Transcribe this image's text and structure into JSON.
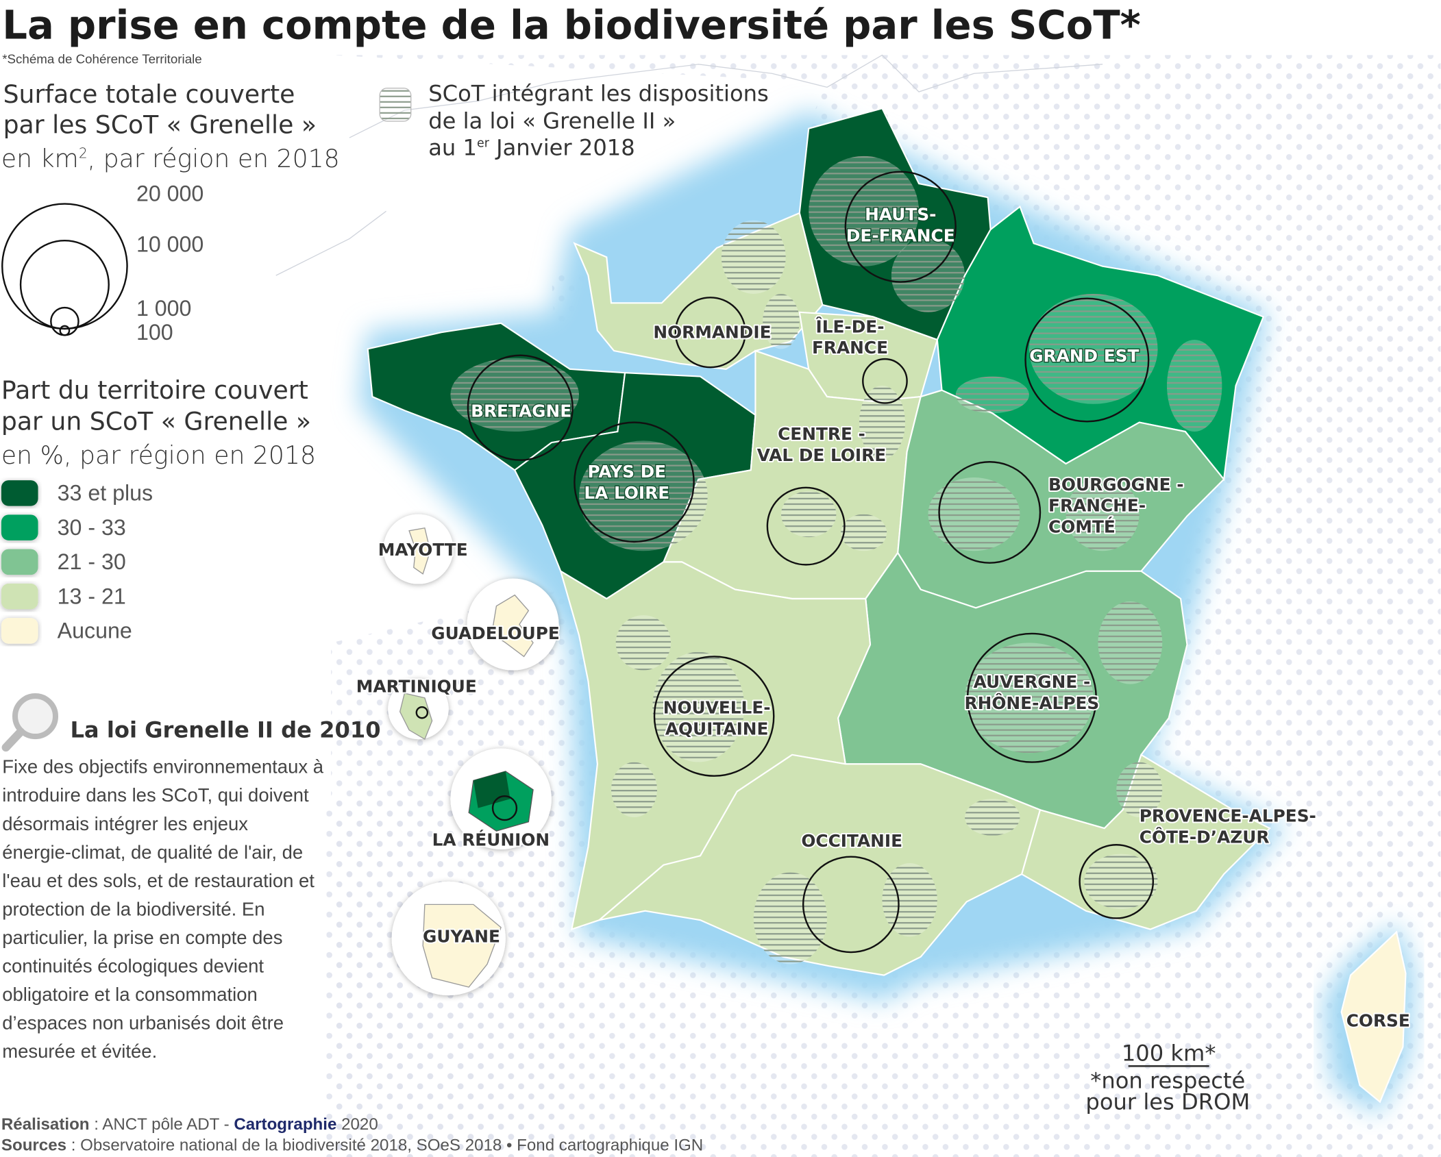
{
  "title": "La prise en compte de la biodiversité par les SCoT*",
  "footnote": "*Schéma de Cohérence Territoriale",
  "legend_size": {
    "title_lines": [
      "Surface totale couverte",
      "par les SCoT « Grenelle »"
    ],
    "subtitle_pre": "en km",
    "subtitle_sup": "2",
    "subtitle_post": ", par région en 2018",
    "values": [
      "20 000",
      "10 000",
      "1 000",
      "100"
    ]
  },
  "legend_hatch": {
    "lines": [
      "SCoT intégrant les dispositions",
      "de la loi « Grenelle II »"
    ],
    "line3_pre": "au 1",
    "line3_sup": "er",
    "line3_post": " Janvier 2018"
  },
  "legend_share": {
    "title_lines": [
      "Part du territoire couvert",
      "par un SCoT « Grenelle »"
    ],
    "subtitle": "en %, par région en 2018",
    "classes": [
      {
        "label": "33 et plus",
        "color": "#005c30"
      },
      {
        "label": "30 - 33",
        "color": "#00a05e"
      },
      {
        "label": "21 - 30",
        "color": "#80c493"
      },
      {
        "label": "13 - 21",
        "color": "#cfe3b4"
      },
      {
        "label": "Aucune",
        "color": "#fdf6d8"
      }
    ]
  },
  "box": {
    "title": "La loi Grenelle II de 2010",
    "lines": [
      "Fixe des objectifs environnementaux à",
      "introduire dans les SCoT, qui doivent",
      "désormais intégrer les enjeux",
      "énergie-climat, de qualité de l'air, de",
      "l'eau et des sols, et de restauration et",
      "protection de la biodiversité. En",
      "particulier, la prise en compte des",
      "continuités écologiques devient",
      "obligatoire et la consommation",
      "d’espaces non urbanisés doit être",
      "mesurée et évitée."
    ]
  },
  "regions": {
    "hdf": [
      "HAUTS-",
      "DE-FRANCE"
    ],
    "normandie": [
      "NORMANDIE"
    ],
    "idf": [
      "ÎLE-DE-",
      "FRANCE"
    ],
    "grand_est": [
      "GRAND EST"
    ],
    "bretagne": [
      "BRETAGNE"
    ],
    "pdl": [
      "PAYS DE",
      "LA LOIRE"
    ],
    "centre": [
      "CENTRE -",
      "VAL DE LOIRE"
    ],
    "bfc": [
      "BOURGOGNE -",
      "FRANCHE-",
      "COMTÉ"
    ],
    "ara": [
      "AUVERGNE -",
      "RHÔNE-ALPES"
    ],
    "na": [
      "NOUVELLE-",
      "AQUITAINE"
    ],
    "occitanie": [
      "OCCITANIE"
    ],
    "paca": [
      "PROVENCE-ALPES-",
      "CÔTE-D’AZUR"
    ],
    "corse": [
      "CORSE"
    ],
    "mayotte": [
      "MAYOTTE"
    ],
    "guadeloupe": [
      "GUADELOUPE"
    ],
    "martinique": [
      "MARTINIQUE"
    ],
    "reunion": [
      "LA RÉUNION"
    ],
    "guyane": [
      "GUYANE"
    ]
  },
  "scale": {
    "label": "100 km*",
    "note_lines": [
      "*non respecté",
      "pour les DROM"
    ]
  },
  "credits": {
    "realisation_label": "Réalisation",
    "realisation_text": " : ANCT pôle ADT - ",
    "cartographie": "Cartographie",
    "year": " 2020",
    "sources_label": "Sources",
    "sources_text": " : Observatoire national de la biodiversité 2018, SOeS 2018 •  Fond cartographique IGN"
  }
}
